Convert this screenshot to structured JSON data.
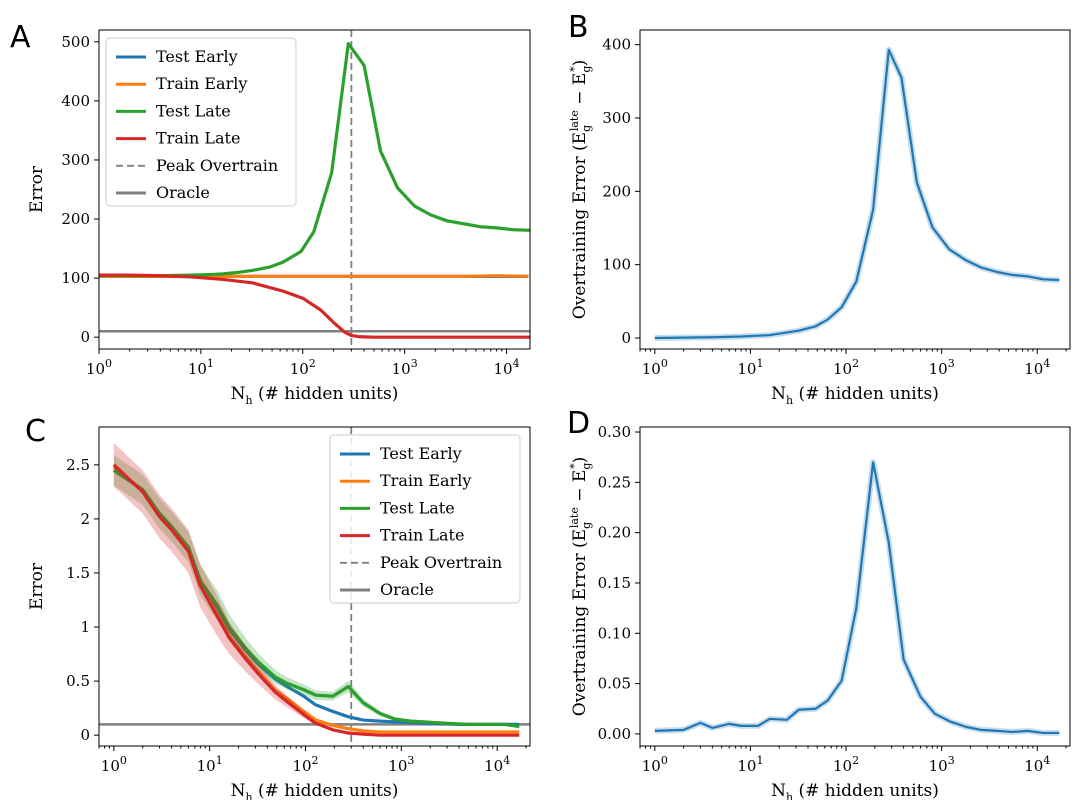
{
  "chart_data": [
    {
      "panel": "A",
      "type": "line",
      "xscale": "log",
      "xlabel": "N_h (# hidden units)",
      "ylabel": "Error",
      "xlim": [
        1,
        17000
      ],
      "ylim": [
        -20,
        520
      ],
      "yticks": [
        0,
        100,
        200,
        300,
        400,
        500
      ],
      "xticks": [
        1,
        10,
        100,
        1000,
        10000
      ],
      "xtick_labels": [
        "10^0",
        "10^1",
        "10^2",
        "10^3",
        "10^4"
      ],
      "grid": false,
      "legend": {
        "position": "top-left",
        "entries": [
          "Test Early",
          "Train Early",
          "Test Late",
          "Train Late",
          "Peak Overtrain",
          "Oracle"
        ]
      },
      "peak_overtrain_x": 300,
      "oracle_y": 10,
      "series": [
        {
          "name": "Test Early",
          "color": "#1f77b4",
          "x": [
            1,
            2,
            4,
            8,
            16,
            32,
            64,
            128,
            256,
            512,
            1024,
            2048,
            4096,
            8192,
            16384
          ],
          "y": [
            103,
            103,
            103,
            103,
            103,
            103,
            103,
            103,
            103,
            103,
            103,
            103,
            103,
            103,
            103
          ]
        },
        {
          "name": "Train Early",
          "color": "#ff7f0e",
          "x": [
            1,
            2,
            4,
            8,
            16,
            32,
            64,
            128,
            256,
            512,
            1024,
            2048,
            4096,
            8192,
            16384
          ],
          "y": [
            103,
            103,
            103,
            103,
            103,
            103,
            103,
            103,
            103,
            103,
            103,
            103,
            103,
            104,
            103
          ]
        },
        {
          "name": "Test Late",
          "color": "#2ca02c",
          "x": [
            1,
            2,
            4,
            8,
            12,
            16,
            24,
            32,
            48,
            64,
            96,
            128,
            192,
            280,
            400,
            580,
            850,
            1250,
            1800,
            2600,
            3800,
            5500,
            8000,
            11500,
            17000
          ],
          "y": [
            104,
            104,
            104,
            105,
            106,
            107,
            110,
            113,
            119,
            127,
            145,
            178,
            278,
            497,
            460,
            315,
            253,
            222,
            207,
            197,
            192,
            187,
            185,
            182,
            181
          ]
        },
        {
          "name": "Train Late",
          "color": "#d62728",
          "x": [
            1,
            2,
            4,
            8,
            16,
            32,
            64,
            100,
            150,
            200,
            260,
            300,
            350,
            400,
            500,
            700,
            1000,
            2000,
            4000,
            8000,
            17000
          ],
          "y": [
            105,
            105,
            104,
            102,
            98,
            92,
            78,
            66,
            46,
            25,
            8,
            3,
            1,
            0.5,
            0,
            0,
            0,
            0,
            0,
            0,
            0
          ]
        }
      ]
    },
    {
      "panel": "B",
      "type": "line",
      "xscale": "log",
      "xlabel": "N_h (# hidden units)",
      "ylabel": "Overtraining Error (E_g^late − E_g^*)",
      "xlim": [
        0.7,
        22000
      ],
      "ylim": [
        -15,
        420
      ],
      "yticks": [
        0,
        100,
        200,
        300,
        400
      ],
      "xticks": [
        1,
        10,
        100,
        1000,
        10000
      ],
      "xtick_labels": [
        "10^0",
        "10^1",
        "10^2",
        "10^3",
        "10^4"
      ],
      "grid": false,
      "series": [
        {
          "name": "",
          "color": "#1f77b4",
          "x": [
            1,
            2,
            4,
            8,
            16,
            32,
            48,
            64,
            90,
            128,
            192,
            280,
            380,
            550,
            800,
            1200,
            1800,
            2600,
            3800,
            5500,
            8000,
            11500,
            17000
          ],
          "y": [
            0,
            0.5,
            1,
            2,
            4,
            10,
            16,
            25,
            42,
            77,
            175,
            393,
            355,
            212,
            151,
            121,
            106,
            96,
            90,
            86,
            84,
            80,
            79
          ]
        }
      ]
    },
    {
      "panel": "C",
      "type": "line",
      "xscale": "log",
      "xlabel": "N_h (# hidden units)",
      "ylabel": "Error",
      "xlim": [
        0.7,
        22000
      ],
      "ylim": [
        -0.1,
        2.85
      ],
      "yticks": [
        0.0,
        0.5,
        1.0,
        1.5,
        2.0,
        2.5
      ],
      "xticks": [
        1,
        10,
        100,
        1000,
        10000
      ],
      "xtick_labels": [
        "10^0",
        "10^1",
        "10^2",
        "10^3",
        "10^4"
      ],
      "grid": false,
      "legend": {
        "position": "top-right",
        "entries": [
          "Test Early",
          "Train Early",
          "Test Late",
          "Train Late",
          "Peak Overtrain",
          "Oracle"
        ]
      },
      "peak_overtrain_x": 300,
      "oracle_y": 0.1,
      "series": [
        {
          "name": "Test Early",
          "color": "#1f77b4",
          "x": [
            1,
            2,
            3,
            4,
            6,
            8,
            12,
            16,
            24,
            32,
            48,
            64,
            96,
            128,
            192,
            280,
            400,
            600,
            1000,
            2000,
            4000,
            8000,
            12000,
            17000
          ],
          "y": [
            2.45,
            2.27,
            2.05,
            1.93,
            1.73,
            1.42,
            1.18,
            0.98,
            0.78,
            0.66,
            0.52,
            0.45,
            0.36,
            0.28,
            0.22,
            0.17,
            0.14,
            0.13,
            0.12,
            0.11,
            0.1,
            0.1,
            0.1,
            0.1
          ]
        },
        {
          "name": "Train Early",
          "color": "#ff7f0e",
          "x": [
            1,
            2,
            3,
            4,
            6,
            8,
            12,
            16,
            24,
            32,
            48,
            64,
            96,
            128,
            192,
            280,
            400,
            600,
            1000,
            2000,
            4000,
            8000,
            17000
          ],
          "y": [
            2.48,
            2.26,
            2.03,
            1.92,
            1.71,
            1.38,
            1.12,
            0.92,
            0.72,
            0.59,
            0.42,
            0.34,
            0.22,
            0.14,
            0.09,
            0.06,
            0.04,
            0.03,
            0.03,
            0.03,
            0.03,
            0.03,
            0.03
          ]
        },
        {
          "name": "Test Late",
          "color": "#2ca02c",
          "x": [
            1,
            2,
            3,
            4,
            6,
            8,
            12,
            16,
            24,
            32,
            48,
            64,
            96,
            128,
            192,
            280,
            400,
            600,
            850,
            1250,
            2000,
            3000,
            5000,
            8000,
            12000,
            17000
          ],
          "y": [
            2.45,
            2.27,
            2.05,
            1.93,
            1.74,
            1.43,
            1.2,
            1.0,
            0.8,
            0.68,
            0.54,
            0.48,
            0.42,
            0.37,
            0.36,
            0.45,
            0.3,
            0.2,
            0.15,
            0.13,
            0.12,
            0.11,
            0.1,
            0.1,
            0.1,
            0.08
          ]
        },
        {
          "name": "Train Late",
          "color": "#d62728",
          "x": [
            1,
            2,
            3,
            4,
            6,
            8,
            12,
            16,
            24,
            32,
            48,
            64,
            96,
            128,
            192,
            280,
            400,
            600,
            1000,
            2000,
            4000,
            8000,
            17000
          ],
          "y": [
            2.5,
            2.25,
            2.02,
            1.9,
            1.7,
            1.38,
            1.1,
            0.9,
            0.7,
            0.57,
            0.4,
            0.31,
            0.19,
            0.11,
            0.05,
            0.02,
            0.01,
            0.0,
            0.0,
            0.0,
            0.0,
            0.0,
            0.0
          ]
        }
      ]
    },
    {
      "panel": "D",
      "type": "line",
      "xscale": "log",
      "xlabel": "N_h (# hidden units)",
      "ylabel": "Overtraining Error (E_g^late − E_g^*)",
      "xlim": [
        0.7,
        22000
      ],
      "ylim": [
        -0.012,
        0.305
      ],
      "yticks": [
        0.0,
        0.05,
        0.1,
        0.15,
        0.2,
        0.25,
        0.3
      ],
      "ytick_labels": [
        "0.00",
        "0.05",
        "0.10",
        "0.15",
        "0.20",
        "0.25",
        "0.30"
      ],
      "xticks": [
        1,
        10,
        100,
        1000,
        10000
      ],
      "xtick_labels": [
        "10^0",
        "10^1",
        "10^2",
        "10^3",
        "10^4"
      ],
      "grid": false,
      "series": [
        {
          "name": "",
          "color": "#1f77b4",
          "x": [
            1,
            2,
            3,
            4,
            6,
            8,
            12,
            16,
            24,
            32,
            48,
            64,
            90,
            128,
            192,
            280,
            400,
            600,
            850,
            1250,
            1800,
            2600,
            3800,
            5500,
            8000,
            11500,
            17000
          ],
          "y": [
            0.003,
            0.004,
            0.011,
            0.006,
            0.01,
            0.008,
            0.008,
            0.015,
            0.014,
            0.024,
            0.025,
            0.033,
            0.053,
            0.125,
            0.27,
            0.19,
            0.074,
            0.037,
            0.02,
            0.012,
            0.007,
            0.004,
            0.003,
            0.002,
            0.003,
            0.001,
            0.001
          ]
        }
      ]
    }
  ]
}
